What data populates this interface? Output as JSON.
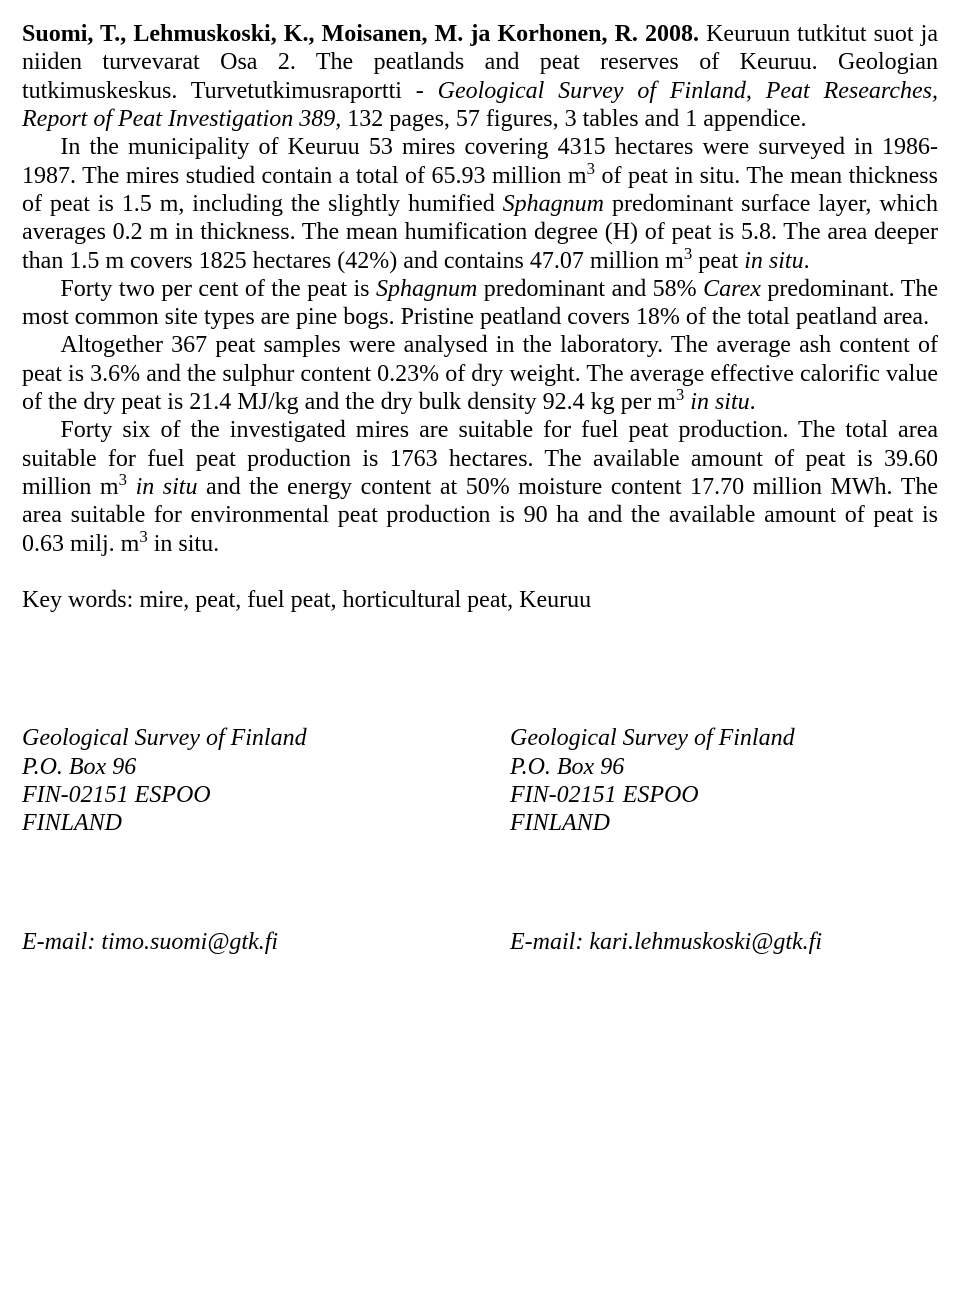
{
  "abstract": {
    "citation_authors": "Suomi, T., Lehmuskoski, K., Moisanen, M. ja Korhonen, R. 2008.",
    "citation_rest": " Keuruun tutkitut suot ja niiden turvevarat Osa 2. The peatlands and peat reserves of Keuruu. Geologian tutkimuskeskus. Turvetutkimusraportti - ",
    "citation_italic": "Geological Survey of Finland, Peat Researches, Report of Peat Investigation 389,",
    "citation_tail": " 132 pages, 57 figures, 3 tables and 1 appendice.",
    "p2_a": "In the municipality of Keuruu 53 mires covering 4315 hectares were surveyed in 1986-1987. The mires studied contain a total of  65.93 million m",
    "p2_b": " of peat in situ. The mean thickness of peat is 1.5 m, including the slightly humified ",
    "p2_c": "Sphagnum",
    "p2_d": " predominant surface layer, which averages 0.2 m in thickness. The mean humification degree (H) of peat is 5.8. The area deeper than 1.5 m covers 1825  hectares (42%) and contains 47.07 million m",
    "p2_e": " peat ",
    "p2_f": "in situ",
    "p2_g": ".",
    "p3_a": "Forty two per cent of the peat is ",
    "p3_b": "Sphagnum",
    "p3_c": " predominant and 58% ",
    "p3_d": "Carex",
    "p3_e": " predominant. The most common site types are pine bogs. Pristine peatland covers 18% of the total peatland area.",
    "p4_a": "Altogether 367 peat samples were analysed in the laboratory. The average ash content of peat is 3.6% and the sulphur content 0.23% of dry weight. The average effective calorific value of the dry peat is 21.4 MJ/kg and the dry bulk density 92.4 kg per m",
    "p4_b": " ",
    "p4_c": "in situ",
    "p4_d": ".",
    "p5_a": "Forty six of the investigated mires are suitable for fuel peat production. The total area suitable for fuel peat production is 1763 hectares. The available amount of peat is 39.60 million m",
    "p5_b": " ",
    "p5_c": "in situ",
    "p5_d": " and the energy content at 50% moisture content 17.70 million MWh. The area suitable for environmental peat production is 90 ha and the available amount of  peat is 0.63 milj. m",
    "p5_e": " in situ.",
    "sup3": "3"
  },
  "keywords_label": "Key words: mire, peat, fuel peat, horticultural peat, Keuruu",
  "address_left": {
    "l1": "Geological Survey of Finland",
    "l2": "P.O. Box 96",
    "l3": "FIN-02151 ESPOO",
    "l4": "FINLAND"
  },
  "address_right": {
    "l1": "Geological Survey of Finland",
    "l2": "P.O. Box 96",
    "l3": "FIN-02151 ESPOO",
    "l4": "FINLAND"
  },
  "email_left": "E-mail: timo.suomi@gtk.fi",
  "email_right": "E-mail: kari.lehmuskoski@gtk.fi"
}
